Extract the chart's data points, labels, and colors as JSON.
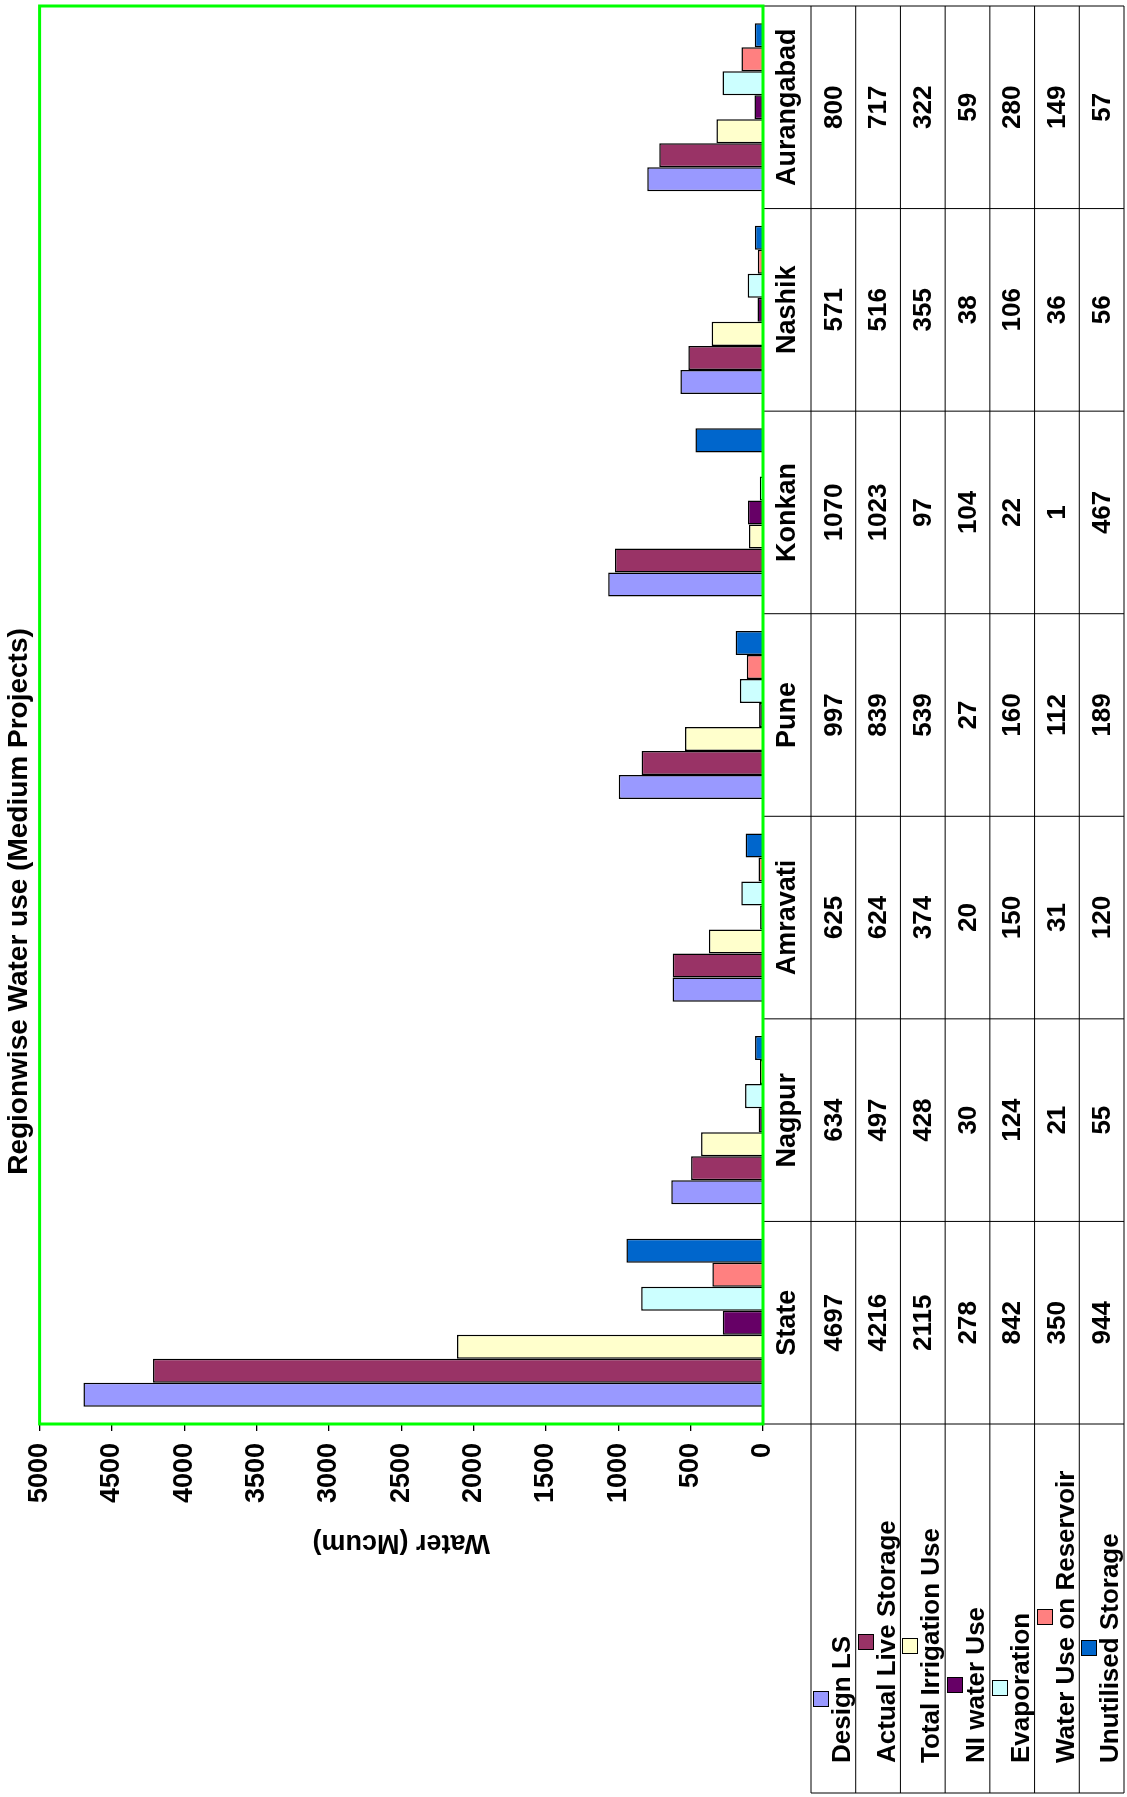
{
  "chart_data": {
    "type": "bar",
    "orientation": "horizontal",
    "title": "Regionwise Water use (Medium Projects)",
    "xlabel": "Water (Mcum)",
    "categories": [
      "Aurangabad",
      "Nashik",
      "Konkan",
      "Pune",
      "Amravati",
      "Nagpur",
      "State"
    ],
    "series": [
      {
        "name": "Design LS",
        "color": "#9999ff",
        "values": [
          800,
          571,
          1070,
          997,
          625,
          634,
          4697
        ]
      },
      {
        "name": "Actual Live Storage",
        "color": "#993366",
        "values": [
          717,
          516,
          1023,
          839,
          624,
          497,
          4216
        ]
      },
      {
        "name": "Total Irrigation Use",
        "color": "#ffffcc",
        "values": [
          322,
          355,
          97,
          539,
          374,
          428,
          2115
        ]
      },
      {
        "name": "NI water Use",
        "color": "#660066",
        "values": [
          59,
          38,
          104,
          27,
          20,
          30,
          278
        ]
      },
      {
        "name": "Evaporation",
        "color": "#ccffff",
        "values": [
          280,
          106,
          22,
          160,
          150,
          124,
          842
        ]
      },
      {
        "name": "Water Use on Reservoir",
        "color": "#ff8080",
        "values": [
          149,
          36,
          1,
          112,
          31,
          21,
          350
        ]
      },
      {
        "name": "Unutilised Storage",
        "color": "#0066cc",
        "values": [
          57,
          56,
          467,
          189,
          120,
          55,
          944
        ]
      }
    ],
    "xlim": [
      5000,
      0
    ],
    "xticks": [
      0,
      500,
      1000,
      1500,
      2000,
      2500,
      3000,
      3500,
      4000,
      4500,
      5000
    ],
    "data_labels": true,
    "legend": "bottom right"
  }
}
